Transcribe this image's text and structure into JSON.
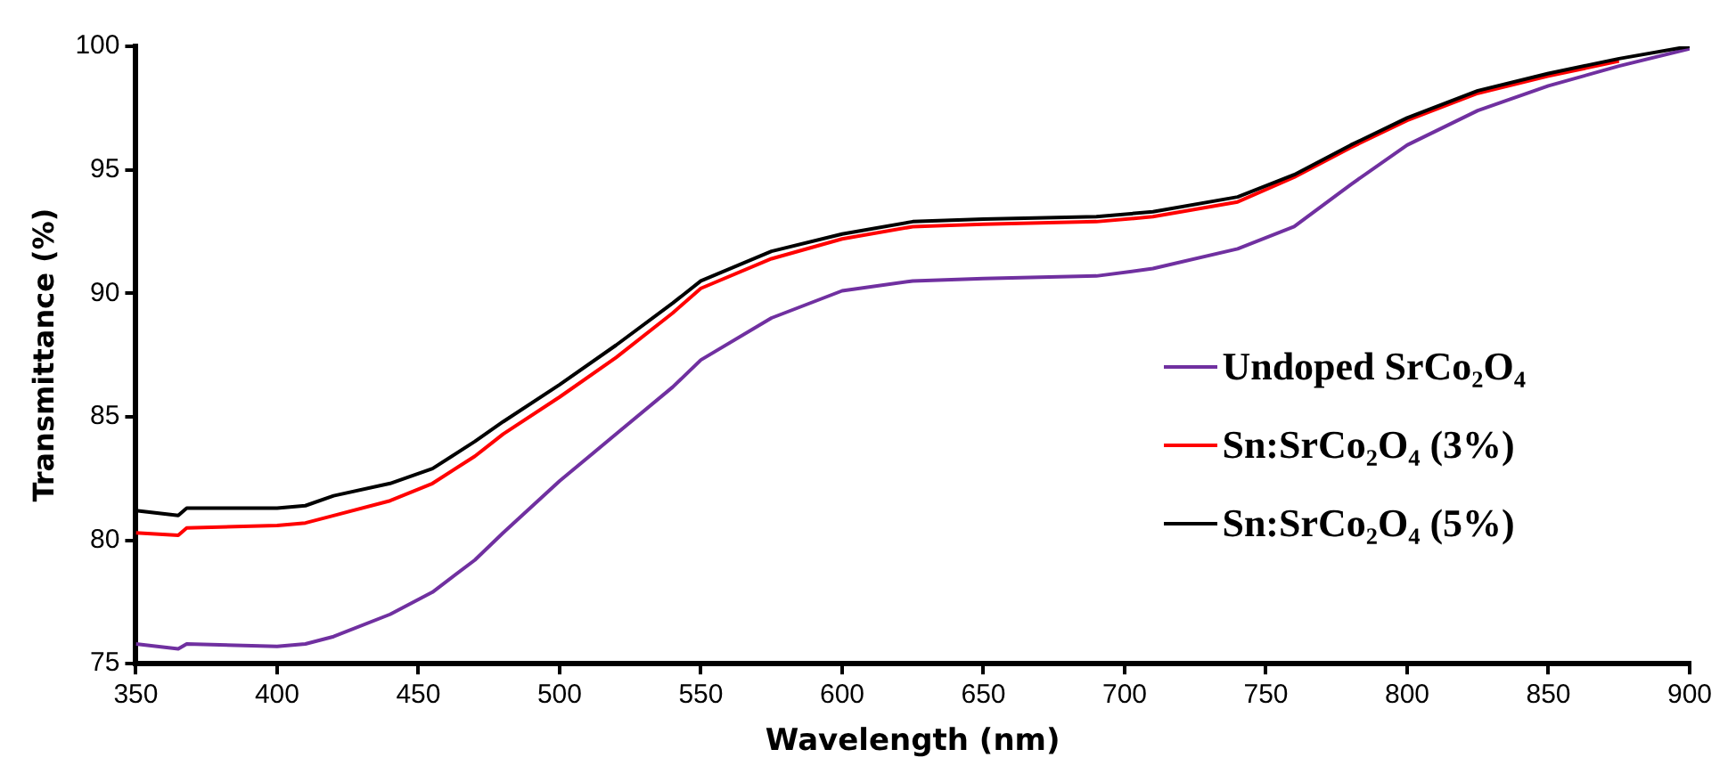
{
  "chart_data": {
    "type": "line",
    "xlabel": "Wavelength (nm)",
    "ylabel": "Transmittance (%)",
    "x": [
      350,
      365,
      368,
      400,
      410,
      420,
      440,
      455,
      470,
      480,
      500,
      520,
      540,
      550,
      575,
      600,
      625,
      650,
      690,
      710,
      740,
      760,
      780,
      800,
      825,
      850,
      875,
      900
    ],
    "series": [
      {
        "name": "Undoped SrCo₂O₄",
        "color": "#7030a0",
        "values": [
          75.8,
          75.6,
          75.8,
          75.7,
          75.8,
          76.1,
          77.0,
          77.9,
          79.2,
          80.3,
          82.4,
          84.3,
          86.2,
          87.3,
          89.0,
          90.1,
          90.5,
          90.6,
          90.7,
          91.0,
          91.8,
          92.7,
          94.4,
          96.0,
          97.4,
          98.4,
          99.2,
          99.9
        ]
      },
      {
        "name": "Sn:SrCo₂O₄ (3%)",
        "color": "#ff0000",
        "values": [
          80.3,
          80.2,
          80.5,
          80.6,
          80.7,
          81.0,
          81.6,
          82.3,
          83.4,
          84.3,
          85.8,
          87.4,
          89.2,
          90.2,
          91.4,
          92.2,
          92.7,
          92.8,
          92.9,
          93.1,
          93.7,
          94.7,
          95.9,
          97.0,
          98.1,
          98.8,
          99.4,
          null
        ]
      },
      {
        "name": "Sn:SrCo₂O₄ (5%)",
        "color": "#000000",
        "values": [
          81.2,
          81.0,
          81.3,
          81.3,
          81.4,
          81.8,
          82.3,
          82.9,
          84.0,
          84.8,
          86.3,
          87.9,
          89.6,
          90.5,
          91.7,
          92.4,
          92.9,
          93.0,
          93.1,
          93.3,
          93.9,
          94.8,
          96.0,
          97.1,
          98.2,
          98.9,
          99.5,
          100
        ]
      }
    ],
    "xlim": [
      350,
      900
    ],
    "xticks": [
      350,
      400,
      450,
      500,
      550,
      600,
      650,
      700,
      750,
      800,
      850,
      900
    ],
    "ylim": [
      75,
      100
    ],
    "yticks": [
      75,
      80,
      85,
      90,
      95,
      100
    ],
    "grid": false,
    "legend": "right",
    "marker": "none",
    "line_style": "solid"
  }
}
